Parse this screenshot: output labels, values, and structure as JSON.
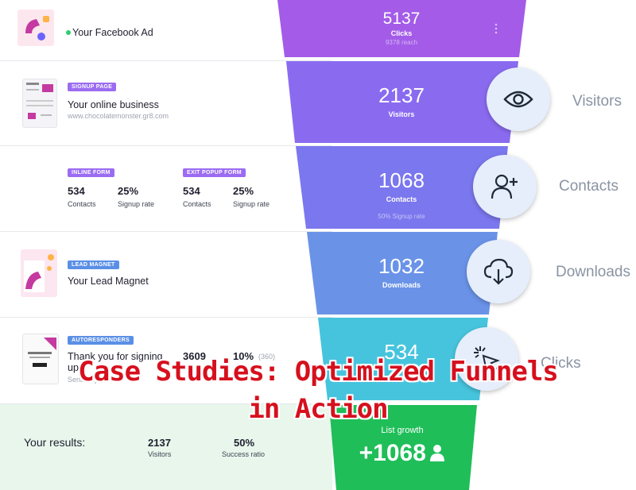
{
  "overlay": {
    "line1": "Case Studies: Optimized Funnels",
    "line2": "in Action"
  },
  "rows": {
    "r1": {
      "title": "Your Facebook Ad"
    },
    "r2": {
      "badge": "SIGNUP PAGE",
      "title": "Your online business",
      "url": "www.chocolatemonster.gr8.com"
    },
    "r3": {
      "left": {
        "badge": "INLINE FORM",
        "contacts": "534",
        "contacts_label": "Contacts",
        "rate": "25%",
        "rate_label": "Signup rate"
      },
      "right": {
        "badge": "EXIT POPUP FORM",
        "contacts": "534",
        "contacts_label": "Contacts",
        "rate": "25%",
        "rate_label": "Signup rate"
      }
    },
    "r4": {
      "badge": "LEAD MAGNET",
      "title": "Your Lead Magnet"
    },
    "r5": {
      "badge": "AUTORESPONDERS",
      "title_l1": "Thank you for signing",
      "title_l2": "up!",
      "sub": "Send day",
      "num": "3609",
      "pct": "10%",
      "pct_sub": "(360)"
    },
    "r6": {
      "label": "Your results:",
      "visitors": "2137",
      "visitors_label": "Visitors",
      "ratio": "50%",
      "ratio_label": "Success ratio"
    }
  },
  "funnel": {
    "s1": {
      "value": "5137",
      "label": "Clicks",
      "sub": "9378 reach"
    },
    "s2": {
      "value": "2137",
      "label": "Visitors"
    },
    "s3": {
      "value": "1068",
      "label": "Contacts",
      "sub": "50% Signup rate"
    },
    "s4": {
      "value": "1032",
      "label": "Downloads"
    },
    "s5": {
      "value": "534"
    },
    "s6": {
      "label": "List growth",
      "value": "+1068"
    }
  },
  "stages": [
    "Visitors",
    "Contacts",
    "Downloads",
    "Clicks"
  ],
  "colors": {
    "s1": "#a35be8",
    "s2": "#8a6bf0",
    "s3": "#7b77ee",
    "s4": "#6a93e8",
    "s5": "#47c4dd",
    "s6": "#1fbe58",
    "overlay": "#d6101e"
  }
}
